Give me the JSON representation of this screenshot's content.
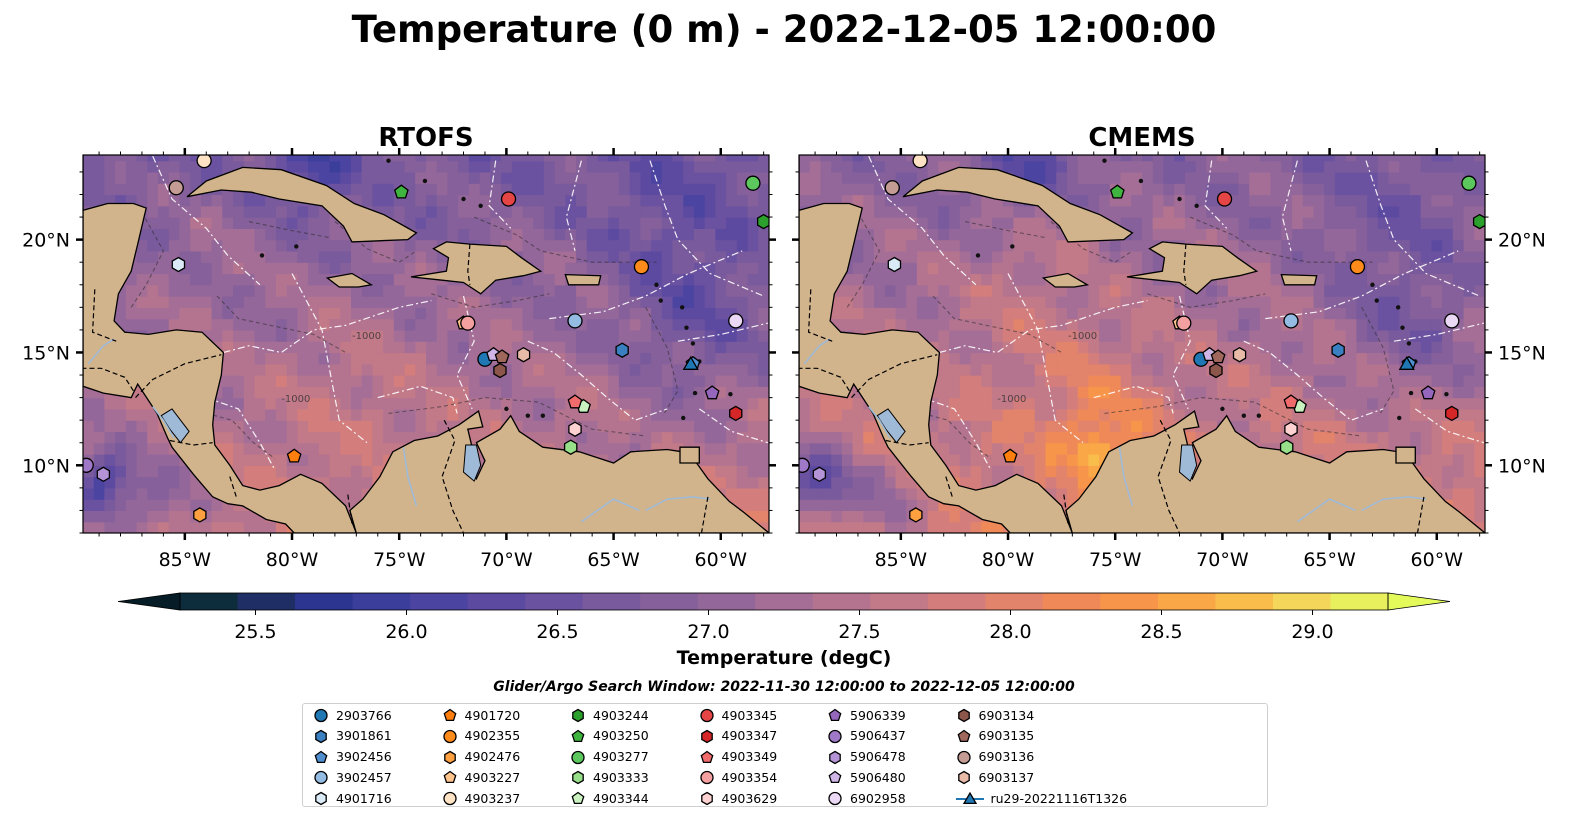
{
  "figure": {
    "title": "Temperature (0 m) - 2022-12-05 12:00:00",
    "search_window": "Glider/Argo Search Window: 2022-11-30 12:00:00 to 2022-12-05 12:00:00"
  },
  "colors": {
    "land": "#d2b48c",
    "contour": "#2a2a2a",
    "eez": "#ffffff",
    "lakes_rivers": "#9fbad6"
  },
  "chart_data": [
    {
      "type": "heatmap",
      "title": "RTOFS",
      "xlim": [
        -89.75,
        -57.75
      ],
      "ylim": [
        7.0,
        23.75
      ],
      "x_ticks": [
        {
          "value": -85,
          "label": "85°W"
        },
        {
          "value": -80,
          "label": "80°W"
        },
        {
          "value": -75,
          "label": "75°W"
        },
        {
          "value": -70,
          "label": "70°W"
        },
        {
          "value": -65,
          "label": "65°W"
        },
        {
          "value": -60,
          "label": "60°W"
        }
      ],
      "y_ticks": [
        {
          "value": 10,
          "label": "10°N"
        },
        {
          "value": 15,
          "label": "15°N"
        },
        {
          "value": 20,
          "label": "20°N"
        }
      ],
      "y_tick_side": "left",
      "contour_label": "-1000",
      "field_description_range_degC": [
        25.5,
        29.2
      ]
    },
    {
      "type": "heatmap",
      "title": "CMEMS",
      "xlim": [
        -89.75,
        -57.75
      ],
      "ylim": [
        7.0,
        23.75
      ],
      "x_ticks": [
        {
          "value": -85,
          "label": "85°W"
        },
        {
          "value": -80,
          "label": "80°W"
        },
        {
          "value": -75,
          "label": "75°W"
        },
        {
          "value": -70,
          "label": "70°W"
        },
        {
          "value": -65,
          "label": "65°W"
        },
        {
          "value": -60,
          "label": "60°W"
        }
      ],
      "y_ticks": [
        {
          "value": 10,
          "label": "10°N"
        },
        {
          "value": 15,
          "label": "15°N"
        },
        {
          "value": 20,
          "label": "20°N"
        }
      ],
      "y_tick_side": "right",
      "contour_label": "-1000",
      "field_description_range_degC": [
        25.5,
        29.3
      ]
    }
  ],
  "colorbar": {
    "label": "Temperature (degC)",
    "min": 25.25,
    "max": 29.25,
    "step": 0.25,
    "extend": "both",
    "ticks": [
      {
        "value": 25.5,
        "label": "25.5"
      },
      {
        "value": 26.0,
        "label": "26.0"
      },
      {
        "value": 26.5,
        "label": "26.5"
      },
      {
        "value": 27.0,
        "label": "27.0"
      },
      {
        "value": 27.5,
        "label": "27.5"
      },
      {
        "value": 28.0,
        "label": "28.0"
      },
      {
        "value": 28.5,
        "label": "28.5"
      },
      {
        "value": 29.0,
        "label": "29.0"
      }
    ],
    "colors": [
      "#0d2d3c",
      "#1f2f65",
      "#2c3590",
      "#3c3e9c",
      "#4c44a1",
      "#5c4aa1",
      "#6b52a0",
      "#795a9d",
      "#86609a",
      "#94679a",
      "#a46e96",
      "#b47490",
      "#c27988",
      "#d37e7c",
      "#e2836c",
      "#ef8a58",
      "#f7954a",
      "#f9a747",
      "#f9bd4c",
      "#f4d65b",
      "#e8f05e"
    ],
    "under_color": "#061c26",
    "over_color": "#e4fa5a"
  },
  "platforms": [
    {
      "id": "2903766",
      "marker": "circle",
      "color": "#1f77b4",
      "lon": -71.0,
      "lat": 14.7
    },
    {
      "id": "3901861",
      "marker": "hexagon",
      "color": "#3a7fc0",
      "lon": -64.6,
      "lat": 15.1
    },
    {
      "id": "3902456",
      "marker": "pentagon",
      "color": "#4f8fd0",
      "lon": -61.3,
      "lat": 14.5
    },
    {
      "id": "3902457",
      "marker": "circle",
      "color": "#94bce3",
      "lon": -66.8,
      "lat": 16.4
    },
    {
      "id": "4901716",
      "marker": "hexagon",
      "color": "#dbeaf7",
      "lon": -85.3,
      "lat": 18.9
    },
    {
      "id": "4901720",
      "marker": "pentagon",
      "color": "#ff7f0e",
      "lon": -79.9,
      "lat": 10.4
    },
    {
      "id": "4902355",
      "marker": "circle",
      "color": "#ff8c1a",
      "lon": -63.7,
      "lat": 18.8
    },
    {
      "id": "4902476",
      "marker": "hexagon",
      "color": "#ffa040",
      "lon": -84.3,
      "lat": 7.8
    },
    {
      "id": "4903227",
      "marker": "pentagon",
      "color": "#ffc48c",
      "lon": -72.0,
      "lat": 16.3
    },
    {
      "id": "4903237",
      "marker": "circle",
      "color": "#ffe3c4",
      "lon": -84.1,
      "lat": 23.5
    },
    {
      "id": "4903244",
      "marker": "hexagon",
      "color": "#2ca02c",
      "lon": -58.0,
      "lat": 20.8
    },
    {
      "id": "4903250",
      "marker": "pentagon",
      "color": "#3fb43f",
      "lon": -74.9,
      "lat": 22.1
    },
    {
      "id": "4903277",
      "marker": "circle",
      "color": "#5cc75c",
      "lon": -58.5,
      "lat": 22.5
    },
    {
      "id": "4903333",
      "marker": "hexagon",
      "color": "#98df8a",
      "lon": -67.0,
      "lat": 10.8
    },
    {
      "id": "4903344",
      "marker": "pentagon",
      "color": "#c9f2c0",
      "lon": -66.4,
      "lat": 12.6
    },
    {
      "id": "4903345",
      "marker": "circle",
      "color": "#e54545",
      "lon": -69.9,
      "lat": 21.8
    },
    {
      "id": "4903347",
      "marker": "hexagon",
      "color": "#d62728",
      "lon": -59.3,
      "lat": 12.3
    },
    {
      "id": "4903349",
      "marker": "pentagon",
      "color": "#f06b6b",
      "lon": -66.8,
      "lat": 12.8
    },
    {
      "id": "4903354",
      "marker": "circle",
      "color": "#f4a0a0",
      "lon": -71.8,
      "lat": 16.3
    },
    {
      "id": "4903629",
      "marker": "hexagon",
      "color": "#ffd2d2",
      "lon": -66.8,
      "lat": 11.6
    },
    {
      "id": "5906339",
      "marker": "pentagon",
      "color": "#9467bd",
      "lon": -60.4,
      "lat": 13.2
    },
    {
      "id": "5906437",
      "marker": "circle",
      "color": "#a078c8",
      "lon": -89.6,
      "lat": 10.0
    },
    {
      "id": "5906478",
      "marker": "hexagon",
      "color": "#b493d6",
      "lon": -88.8,
      "lat": 9.6
    },
    {
      "id": "5906480",
      "marker": "pentagon",
      "color": "#cfb6e6",
      "lon": -70.6,
      "lat": 14.9
    },
    {
      "id": "6902958",
      "marker": "circle",
      "color": "#ead8f5",
      "lon": -59.3,
      "lat": 16.4
    },
    {
      "id": "6903134",
      "marker": "hexagon",
      "color": "#8c564b",
      "lon": -70.3,
      "lat": 14.2
    },
    {
      "id": "6903135",
      "marker": "pentagon",
      "color": "#a0685c",
      "lon": -70.2,
      "lat": 14.8
    },
    {
      "id": "6903136",
      "marker": "circle",
      "color": "#c49c94",
      "lon": -85.4,
      "lat": 22.3
    },
    {
      "id": "6903137",
      "marker": "hexagon",
      "color": "#e8bba8",
      "lon": -69.2,
      "lat": 14.9
    },
    {
      "id": "ru29-20221116T1326",
      "marker": "triangle",
      "color": "#1f77b4",
      "lon": -61.4,
      "lat": 14.5,
      "line": true
    }
  ]
}
